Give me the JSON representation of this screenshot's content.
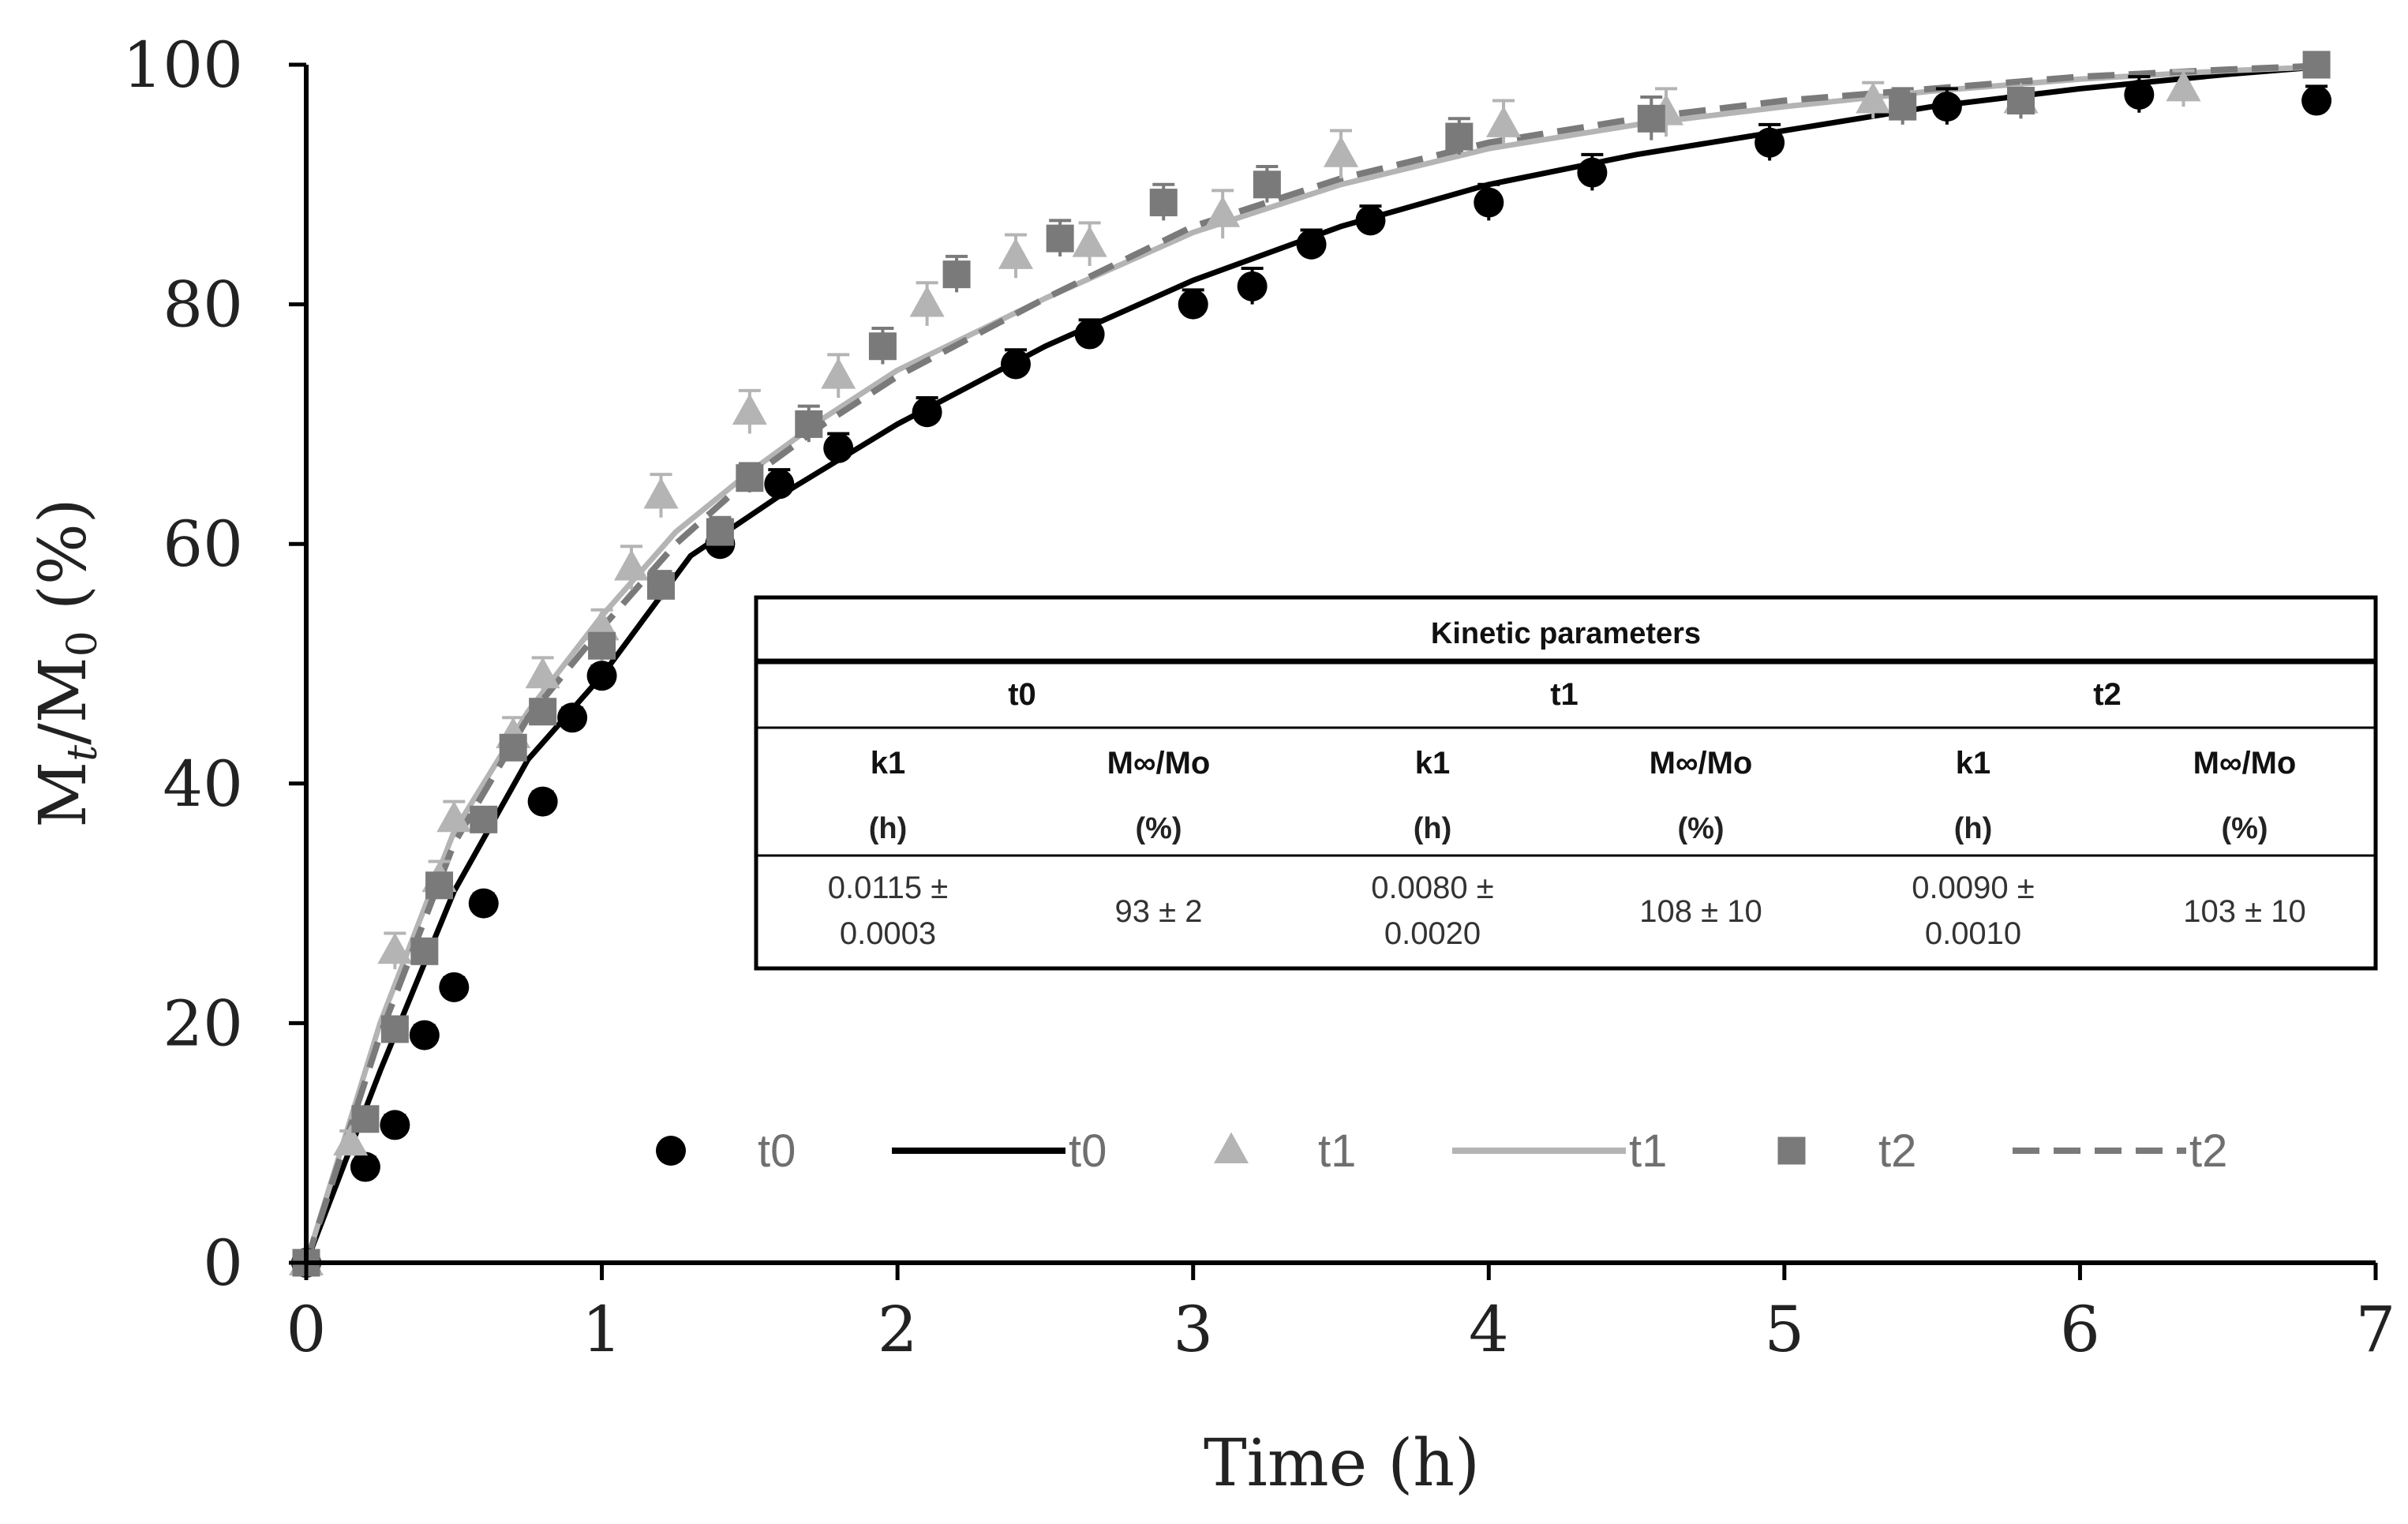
{
  "chart_data": {
    "type": "scatter",
    "title": "",
    "xlabel": "Time (h)",
    "ylabel_main": "M",
    "ylabel_sub1": "t",
    "ylabel_mid": "/M",
    "ylabel_sub2": "0",
    "ylabel_tail": " (%)",
    "xlim": [
      0,
      7
    ],
    "ylim": [
      0,
      100
    ],
    "x_ticks": [
      "0",
      "1",
      "2",
      "3",
      "4",
      "5",
      "6",
      "7"
    ],
    "y_ticks": [
      "0",
      "20",
      "40",
      "60",
      "80",
      "100"
    ],
    "grid": false,
    "legend_position": "bottom",
    "legend": [
      {
        "label": "t0",
        "kind": "marker",
        "marker": "circle",
        "color": "#000000"
      },
      {
        "label": "t0",
        "kind": "line",
        "dash": "solid",
        "color": "#000000"
      },
      {
        "label": "t1",
        "kind": "marker",
        "marker": "triangle",
        "color": "#b4b4b4"
      },
      {
        "label": "t1",
        "kind": "line",
        "dash": "solid",
        "color": "#b4b4b4"
      },
      {
        "label": "t2",
        "kind": "marker",
        "marker": "square",
        "color": "#7a7a7a"
      },
      {
        "label": "t2",
        "kind": "line",
        "dash": "dashed",
        "color": "#7a7a7a"
      }
    ],
    "series": [
      {
        "name": "t0",
        "kind": "points",
        "marker": "circle",
        "color": "#000000",
        "x": [
          0,
          0.2,
          0.3,
          0.4,
          0.5,
          0.6,
          0.8,
          0.9,
          1.0,
          1.4,
          1.6,
          1.8,
          2.1,
          2.4,
          2.65,
          3.0,
          3.2,
          3.4,
          3.6,
          4.0,
          4.35,
          4.95,
          5.55,
          6.2,
          6.8
        ],
        "y": [
          0,
          8,
          11.5,
          19,
          23,
          30,
          38.5,
          45.5,
          49,
          60,
          65,
          68,
          71,
          75,
          77.5,
          80,
          81.5,
          85,
          87,
          88.5,
          91,
          93.5,
          96.5,
          97.5,
          97
        ],
        "err": [
          0,
          0.8,
          0.8,
          0.8,
          0.8,
          0.8,
          0.8,
          0.8,
          0.8,
          1.2,
          1.2,
          1.2,
          1.2,
          1.2,
          1.2,
          1.2,
          1.5,
          1.2,
          1.2,
          1.5,
          1.5,
          1.5,
          1.5,
          1.5,
          1.2
        ]
      },
      {
        "name": "t1",
        "kind": "points",
        "marker": "triangle",
        "color": "#b4b4b4",
        "x": [
          0,
          0.15,
          0.3,
          0.45,
          0.5,
          0.7,
          0.8,
          1.0,
          1.1,
          1.2,
          1.5,
          1.8,
          2.1,
          2.4,
          2.65,
          3.1,
          3.5,
          4.05,
          4.6,
          5.3,
          5.8,
          6.35
        ],
        "y": [
          0,
          10,
          26,
          32,
          37,
          44,
          49,
          53,
          58,
          64,
          71,
          74,
          80,
          84,
          85,
          87.5,
          92.5,
          95,
          96,
          97,
          97,
          98
        ],
        "err": [
          0,
          1,
          1.5,
          1.5,
          1.5,
          1.5,
          1.5,
          1.5,
          1.8,
          1.8,
          1.8,
          1.8,
          1.8,
          1.8,
          1.8,
          2,
          2,
          2,
          2,
          1.5,
          1.5,
          1.5
        ]
      },
      {
        "name": "t2",
        "kind": "points",
        "marker": "square",
        "color": "#7a7a7a",
        "x": [
          0,
          0.2,
          0.3,
          0.4,
          0.45,
          0.6,
          0.7,
          0.8,
          1.0,
          1.2,
          1.4,
          1.5,
          1.7,
          1.95,
          2.2,
          2.55,
          2.9,
          3.25,
          3.9,
          4.55,
          5.4,
          5.8,
          6.8
        ],
        "y": [
          0,
          12,
          19.5,
          26,
          31.5,
          37,
          43,
          46,
          51.5,
          56.5,
          61,
          65.5,
          70,
          76.5,
          82.5,
          85.5,
          88.5,
          90,
          94,
          95.5,
          96.5,
          97,
          100
        ],
        "err": [
          0,
          0.8,
          0.8,
          1,
          1,
          1,
          1,
          1,
          1.2,
          1.2,
          1.2,
          1.2,
          1.5,
          1.5,
          1.5,
          1.5,
          1.5,
          1.5,
          1.5,
          1.8,
          1.5,
          1.5,
          1
        ]
      },
      {
        "name": "t0",
        "kind": "line",
        "dash": "solid",
        "color": "#000000",
        "x": [
          0,
          0.25,
          0.5,
          0.75,
          1.0,
          1.3,
          1.6,
          2.0,
          2.5,
          3.0,
          3.5,
          4.0,
          4.5,
          5.0,
          5.5,
          6.0,
          6.5,
          6.8
        ],
        "y": [
          0,
          16,
          31,
          42,
          49,
          59,
          64,
          70,
          76.5,
          82,
          86.5,
          90,
          92.5,
          94.5,
          96.5,
          98,
          99.2,
          99.8
        ]
      },
      {
        "name": "t1",
        "kind": "line",
        "dash": "solid",
        "color": "#b4b4b4",
        "x": [
          0,
          0.25,
          0.5,
          0.75,
          1.0,
          1.25,
          1.5,
          1.75,
          2.0,
          2.5,
          3.0,
          3.5,
          4.0,
          4.5,
          5.0,
          5.5,
          6.0,
          6.5,
          6.8
        ],
        "y": [
          0,
          20,
          36,
          46,
          54,
          61,
          66,
          70.5,
          74.5,
          80.5,
          86,
          90,
          93,
          95,
          96.5,
          97.8,
          98.8,
          99.5,
          99.8
        ]
      },
      {
        "name": "t2",
        "kind": "line",
        "dash": "dashed",
        "color": "#7a7a7a",
        "x": [
          0,
          0.25,
          0.5,
          0.75,
          1.0,
          1.25,
          1.5,
          1.75,
          2.0,
          2.5,
          3.0,
          3.5,
          4.0,
          4.5,
          5.0,
          5.5,
          6.0,
          6.5,
          6.8
        ],
        "y": [
          0,
          19,
          35,
          45.5,
          53,
          60,
          65.5,
          70,
          74,
          80.5,
          86.5,
          90.5,
          93.5,
          95.5,
          97,
          98,
          99,
          99.6,
          99.9
        ]
      }
    ]
  },
  "table": {
    "title": "Kinetic parameters",
    "groups": [
      "t0",
      "t1",
      "t2"
    ],
    "col_headers": [
      "k1",
      "M∞/Mo",
      "k1",
      "M∞/Mo",
      "k1",
      "M∞/Mo"
    ],
    "col_units": [
      "(h)",
      "(%)",
      "(h)",
      "(%)",
      "(h)",
      "(%)"
    ],
    "rows": [
      [
        "0.0115 ±",
        "0.0003",
        "93 ± 2",
        "0.0080 ±",
        "0.0020",
        "108 ± 10",
        "0.0090 ±",
        "0.0010",
        "103 ± 10"
      ]
    ]
  }
}
